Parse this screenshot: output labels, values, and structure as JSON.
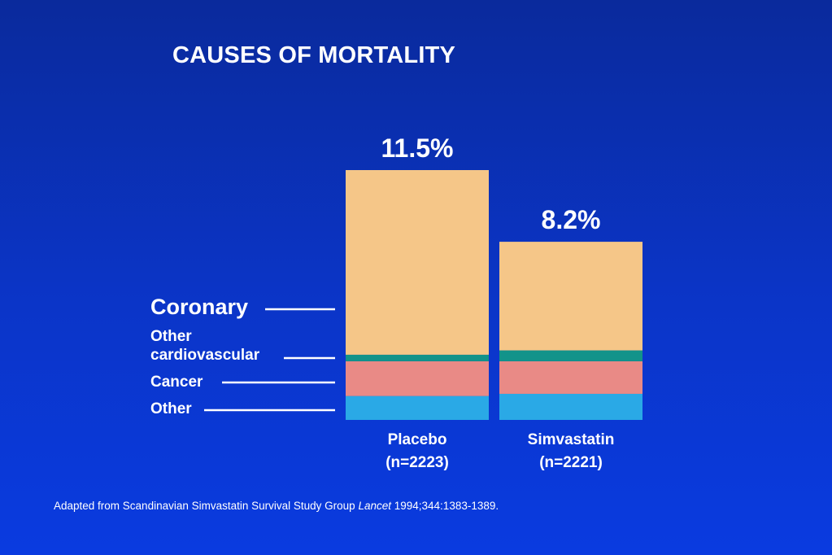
{
  "title": "CAUSES OF MORTALITY",
  "source": {
    "prefix": "Adapted from Scandinavian Simvastatin Survival Study Group ",
    "journal": "Lancet",
    "suffix": " 1994;344:1383-1389."
  },
  "chart_data": {
    "type": "bar",
    "stacked": true,
    "title": "CAUSES OF MORTALITY",
    "categories": [
      {
        "name": "Placebo",
        "n": "(n=2223)",
        "total_label": "11.5%",
        "total": 11.5
      },
      {
        "name": "Simvastatin",
        "n": "(n=2221)",
        "total_label": "8.2%",
        "total": 8.2
      }
    ],
    "series": [
      {
        "name": "Other",
        "color": "#2aa9e6",
        "values": [
          1.1,
          1.2
        ]
      },
      {
        "name": "Cancer",
        "color": "#e98a86",
        "values": [
          1.6,
          1.5
        ]
      },
      {
        "name": "Other cardiovascular",
        "color": "#12938a",
        "values": [
          0.3,
          0.5
        ]
      },
      {
        "name": "Coronary",
        "color": "#f5c688",
        "values": [
          8.5,
          5.0
        ]
      }
    ],
    "legend": {
      "placement": "left",
      "labels": [
        {
          "series": "Coronary",
          "lines": [
            "Coronary"
          ]
        },
        {
          "series": "Other cardiovascular",
          "lines": [
            "Other",
            "cardiovascular"
          ]
        },
        {
          "series": "Cancer",
          "lines": [
            "Cancer"
          ]
        },
        {
          "series": "Other",
          "lines": [
            "Other"
          ]
        }
      ]
    },
    "ylim": [
      0,
      11.5
    ]
  }
}
